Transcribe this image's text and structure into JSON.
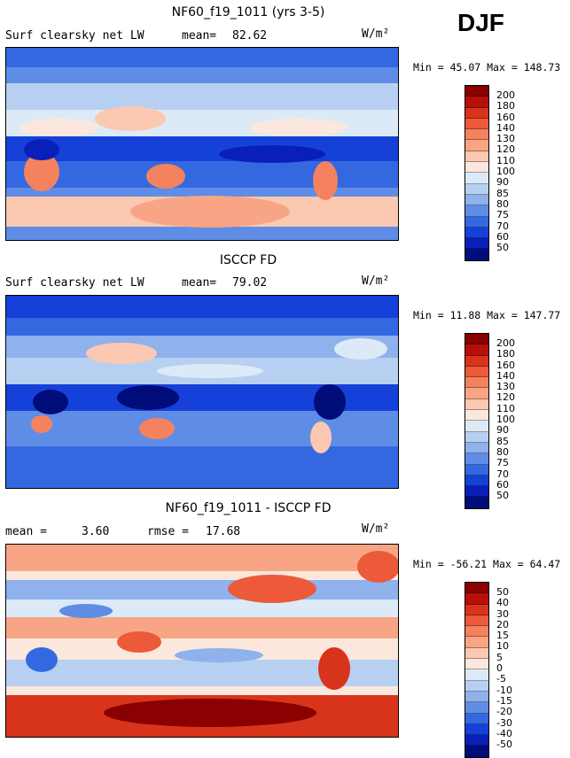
{
  "season": "DJF",
  "panels": [
    {
      "title": "NF60_f19_1011 (yrs 3-5)",
      "variable": "Surf clearsky net LW",
      "mean_label": "mean=",
      "mean": "82.62",
      "units": "W/m²",
      "min_label": "Min =",
      "min": "45.07",
      "max_label": "Max =",
      "max": "148.73",
      "levels": [
        "200",
        "180",
        "160",
        "140",
        "130",
        "120",
        "110",
        "100",
        "90",
        "85",
        "80",
        "75",
        "70",
        "60",
        "50"
      ],
      "colors": [
        "#8b0000",
        "#b80f0a",
        "#d8341c",
        "#ec5a3a",
        "#f4825f",
        "#f8a585",
        "#fbc8b1",
        "#fce7dc",
        "#dceaf8",
        "#b7d0f1",
        "#8fb1ec",
        "#5f8de6",
        "#3468e0",
        "#1541d8",
        "#0a1fb8",
        "#000c7a"
      ]
    },
    {
      "title": "ISCCP FD",
      "variable": "Surf clearsky net LW",
      "mean_label": "mean=",
      "mean": "79.02",
      "units": "W/m²",
      "min_label": "Min =",
      "min": "11.88",
      "max_label": "Max =",
      "max": "147.77",
      "levels": [
        "200",
        "180",
        "160",
        "140",
        "130",
        "120",
        "110",
        "100",
        "90",
        "85",
        "80",
        "75",
        "70",
        "60",
        "50"
      ],
      "colors": [
        "#8b0000",
        "#b80f0a",
        "#d8341c",
        "#ec5a3a",
        "#f4825f",
        "#f8a585",
        "#fbc8b1",
        "#fce7dc",
        "#dceaf8",
        "#b7d0f1",
        "#8fb1ec",
        "#5f8de6",
        "#3468e0",
        "#1541d8",
        "#0a1fb8",
        "#000c7a"
      ]
    },
    {
      "title": "NF60_f19_1011 - ISCCP FD",
      "mean_label": "mean =",
      "mean": "3.60",
      "rmse_label": "rmse =",
      "rmse": "17.68",
      "units": "W/m²",
      "min_label": "Min =",
      "min": "-56.21",
      "max_label": "Max =",
      "max": "64.47",
      "levels": [
        "50",
        "40",
        "30",
        "20",
        "15",
        "10",
        "5",
        "0",
        "-5",
        "-10",
        "-15",
        "-20",
        "-30",
        "-40",
        "-50"
      ],
      "colors": [
        "#8b0000",
        "#b80f0a",
        "#d8341c",
        "#ec5a3a",
        "#f4825f",
        "#f8a585",
        "#fbc8b1",
        "#fce7dc",
        "#dceaf8",
        "#b7d0f1",
        "#8fb1ec",
        "#5f8de6",
        "#3468e0",
        "#1541d8",
        "#0a1fb8",
        "#000c7a"
      ]
    }
  ]
}
